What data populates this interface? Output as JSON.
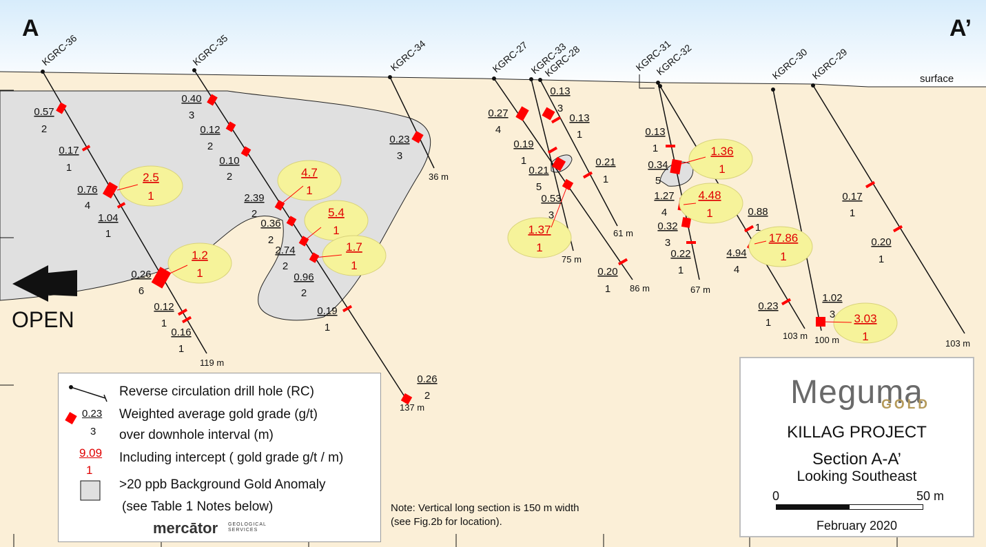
{
  "section_start": "A",
  "section_end": "A’",
  "surface_label": "surface",
  "open_label": "OPEN",
  "holes": [
    {
      "name": "KGRC-36",
      "depth": "119 m"
    },
    {
      "name": "KGRC-35",
      "depth": "137 m"
    },
    {
      "name": "KGRC-34",
      "depth": "36 m"
    },
    {
      "name": "KGRC-27",
      "depth": "86 m"
    },
    {
      "name": "KGRC-33",
      "depth": "75 m"
    },
    {
      "name": "KGRC-28",
      "depth": "61 m"
    },
    {
      "name": "KGRC-31",
      "depth": "67 m"
    },
    {
      "name": "KGRC-32",
      "depth": "103 m"
    },
    {
      "name": "KGRC-30",
      "depth": "100 m"
    },
    {
      "name": "KGRC-29",
      "depth": "103 m"
    }
  ],
  "intervals": [
    {
      "grade": "0.57",
      "length": "2"
    },
    {
      "grade": "0.17",
      "length": "1"
    },
    {
      "grade": "0.76",
      "length": "4"
    },
    {
      "grade": "1.04",
      "length": "1"
    },
    {
      "grade": "0.26",
      "length": "6"
    },
    {
      "grade": "0.12",
      "length": "1"
    },
    {
      "grade": "0.16",
      "length": "1"
    },
    {
      "grade": "0.40",
      "length": "3"
    },
    {
      "grade": "0.12",
      "length": "2"
    },
    {
      "grade": "0.10",
      "length": "2"
    },
    {
      "grade": "2.39",
      "length": "2"
    },
    {
      "grade": "0.36",
      "length": "2"
    },
    {
      "grade": "2.74",
      "length": "2"
    },
    {
      "grade": "0.96",
      "length": "2"
    },
    {
      "grade": "0.19",
      "length": "1"
    },
    {
      "grade": "0.26",
      "length": "2"
    },
    {
      "grade": "0.23",
      "length": "3"
    },
    {
      "grade": "0.27",
      "length": "4"
    },
    {
      "grade": "0.19",
      "length": "1"
    },
    {
      "grade": "0.21",
      "length": "5"
    },
    {
      "grade": "0.53",
      "length": "3"
    },
    {
      "grade": "0.20",
      "length": "1"
    },
    {
      "grade": "0.13",
      "length": "3"
    },
    {
      "grade": "0.13",
      "length": "1"
    },
    {
      "grade": "0.21",
      "length": "1"
    },
    {
      "grade": "0.13",
      "length": "1"
    },
    {
      "grade": "0.34",
      "length": "5"
    },
    {
      "grade": "1.27",
      "length": "4"
    },
    {
      "grade": "0.32",
      "length": "3"
    },
    {
      "grade": "0.22",
      "length": "1"
    },
    {
      "grade": "0.88",
      "length": "1"
    },
    {
      "grade": "4.94",
      "length": "4"
    },
    {
      "grade": "0.23",
      "length": "1"
    },
    {
      "grade": "1.02",
      "length": "3"
    },
    {
      "grade": "0.17",
      "length": "1"
    },
    {
      "grade": "0.20",
      "length": "1"
    }
  ],
  "highlights": [
    {
      "grade": "2.5",
      "length": "1"
    },
    {
      "grade": "1.2",
      "length": "1"
    },
    {
      "grade": "4.7",
      "length": "1"
    },
    {
      "grade": "5.4",
      "length": "1"
    },
    {
      "grade": "1.7",
      "length": "1"
    },
    {
      "grade": "1.37",
      "length": "1"
    },
    {
      "grade": "1.36",
      "length": "1"
    },
    {
      "grade": "4.48",
      "length": "1"
    },
    {
      "grade": "17.86",
      "length": "1"
    },
    {
      "grade": "3.03",
      "length": "1"
    }
  ],
  "legend": {
    "rc": "Reverse circulation drill hole (RC)",
    "sample_grade": "0.23",
    "sample_len": "3",
    "weighted1": "Weighted average gold grade (g/t)",
    "weighted2": "over downhole interval (m)",
    "incl_grade": "9.09",
    "incl_len": "1",
    "including": "Including intercept ( gold grade g/t / m)",
    "anomaly1": ">20 ppb Background Gold Anomaly",
    "anomaly2": "(see Table 1 Notes below)",
    "mercator": "mercātor",
    "mercator_sub": "GEOLOGICAL SERVICES"
  },
  "note_line1": "Note: Vertical long section is 150 m width",
  "note_line2": "(see Fig.2b for location).",
  "titlebox": {
    "logo": "Meguma",
    "logo_sub": "GOLD",
    "project": "KILLAG PROJECT",
    "section": "Section A-A’",
    "looking": "Looking Southeast",
    "scale_start": "0",
    "scale_end": "50 m",
    "date": "February 2020"
  },
  "colors": {
    "sky": "#cfe6f7",
    "ground": "#fbefd7",
    "anomaly": "#e0e0e0",
    "intercept": "#ff0000",
    "highlight": "#f6f39a"
  }
}
